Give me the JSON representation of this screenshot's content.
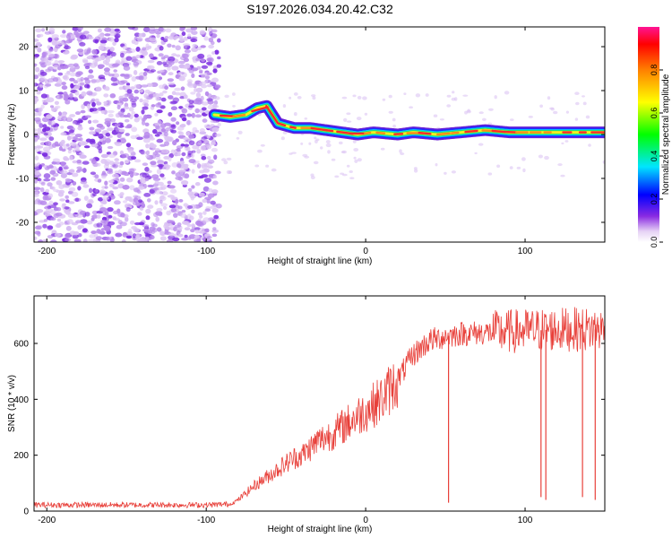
{
  "figure_title": "S197.2026.034.20.42.C32",
  "colors": {
    "snr_line": "#e8403a",
    "scatter_light": "#dcc4f4",
    "scatter_mid": "#b788ec",
    "scatter_dark": "#7a2be0"
  },
  "chart_data": [
    {
      "type": "heatmap",
      "title": "S197.2026.034.20.42.C32",
      "xlabel": "Height of straight line (km)",
      "ylabel": "Frequency (Hz)",
      "xlim": [
        -208,
        150
      ],
      "ylim": [
        -24.5,
        24.5
      ],
      "x_ticks": [
        -200,
        -100,
        0,
        100
      ],
      "y_ticks": [
        -20,
        -10,
        0,
        10,
        20
      ],
      "noise_region_x": [
        -208,
        -92
      ],
      "ridge": {
        "description_points_x": [
          -95,
          -85,
          -75,
          -68,
          -62,
          -55,
          -45,
          -35,
          -25,
          -15,
          -5,
          5,
          20,
          30,
          45,
          60,
          75,
          90,
          110,
          130,
          150
        ],
        "frequency_hz": [
          4.5,
          4.0,
          4.5,
          6.0,
          6.5,
          2.5,
          1.5,
          1.5,
          1.0,
          0.5,
          0.0,
          0.5,
          0.0,
          0.5,
          0.0,
          0.5,
          1.0,
          0.5,
          0.5,
          0.5,
          0.5
        ]
      },
      "colorbar": {
        "label": "Normalized spectral amplitude",
        "range": [
          0.0,
          1.0
        ],
        "ticks": [
          "0.0",
          "0.2",
          "0.4",
          "0.6",
          "0.8"
        ],
        "tick_values": [
          0.0,
          0.2,
          0.4,
          0.6,
          0.8
        ],
        "colormap": [
          "#ffffff",
          "#e6d2f5",
          "#8a2be2",
          "#0000ff",
          "#00e5ff",
          "#00ff00",
          "#ffff00",
          "#ff8000",
          "#ff0000",
          "#ff1493"
        ]
      }
    },
    {
      "type": "line",
      "title": "",
      "xlabel": "Height of straight line (km)",
      "ylabel": "SNR (10 * v/v)",
      "xlim": [
        -208,
        150
      ],
      "ylim": [
        0,
        770
      ],
      "x_ticks": [
        -200,
        -100,
        0,
        100
      ],
      "y_ticks": [
        0,
        200,
        400,
        600
      ],
      "series": [
        {
          "name": "SNR",
          "x": [
            -208,
            -180,
            -150,
            -120,
            -100,
            -85,
            -80,
            -70,
            -60,
            -50,
            -45,
            -40,
            -30,
            -20,
            -10,
            0,
            10,
            20,
            30,
            40,
            50,
            60,
            80,
            100,
            120,
            150
          ],
          "values": [
            22,
            22,
            22,
            22,
            22,
            25,
            40,
            90,
            130,
            170,
            190,
            200,
            250,
            280,
            320,
            360,
            400,
            470,
            560,
            610,
            625,
            635,
            640,
            645,
            650,
            650
          ]
        }
      ],
      "dropouts": [
        {
          "x": 52,
          "value": 30
        },
        {
          "x": 110,
          "value": 50
        },
        {
          "x": 113,
          "value": 40
        },
        {
          "x": 136,
          "value": 50
        },
        {
          "x": 144,
          "value": 40
        }
      ]
    }
  ]
}
